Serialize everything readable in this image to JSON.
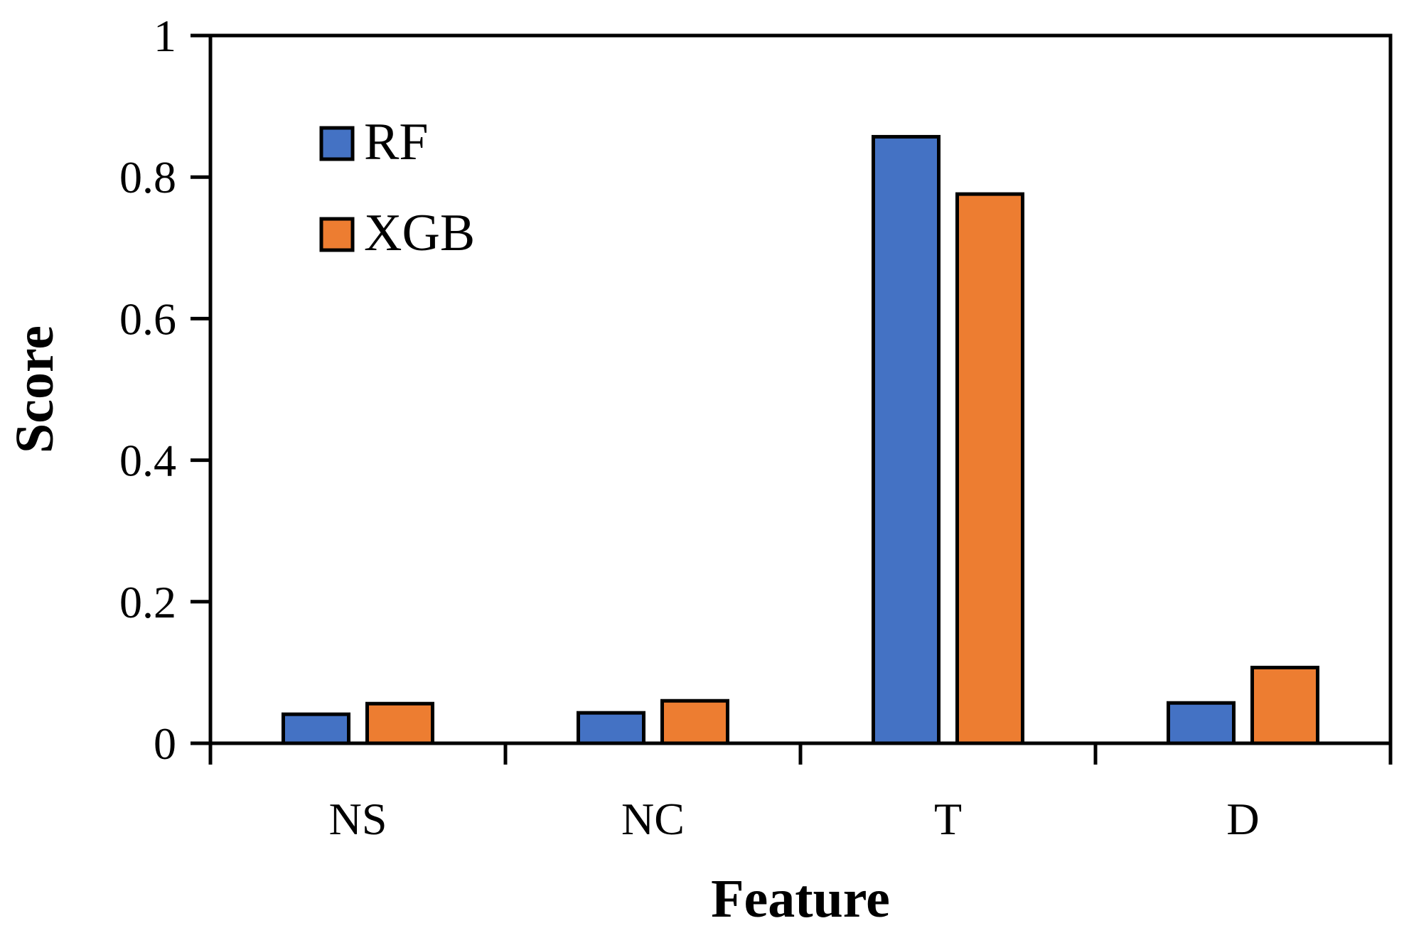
{
  "chart_data": {
    "type": "bar",
    "categories": [
      "NS",
      "NC",
      "T",
      "D"
    ],
    "series": [
      {
        "name": "RF",
        "values": [
          0.041,
          0.043,
          0.857,
          0.057
        ]
      },
      {
        "name": "XGB",
        "values": [
          0.056,
          0.06,
          0.776,
          0.107
        ]
      }
    ],
    "xlabel": "Feature",
    "ylabel": "Score",
    "ylim": [
      0,
      1
    ],
    "yticks": [
      "0",
      "0.2",
      "0.4",
      "0.6",
      "0.8",
      "1"
    ],
    "grid": false,
    "legend_position": "top-left",
    "colors": {
      "RF": "#4472C4",
      "XGB": "#ED7D31"
    }
  }
}
